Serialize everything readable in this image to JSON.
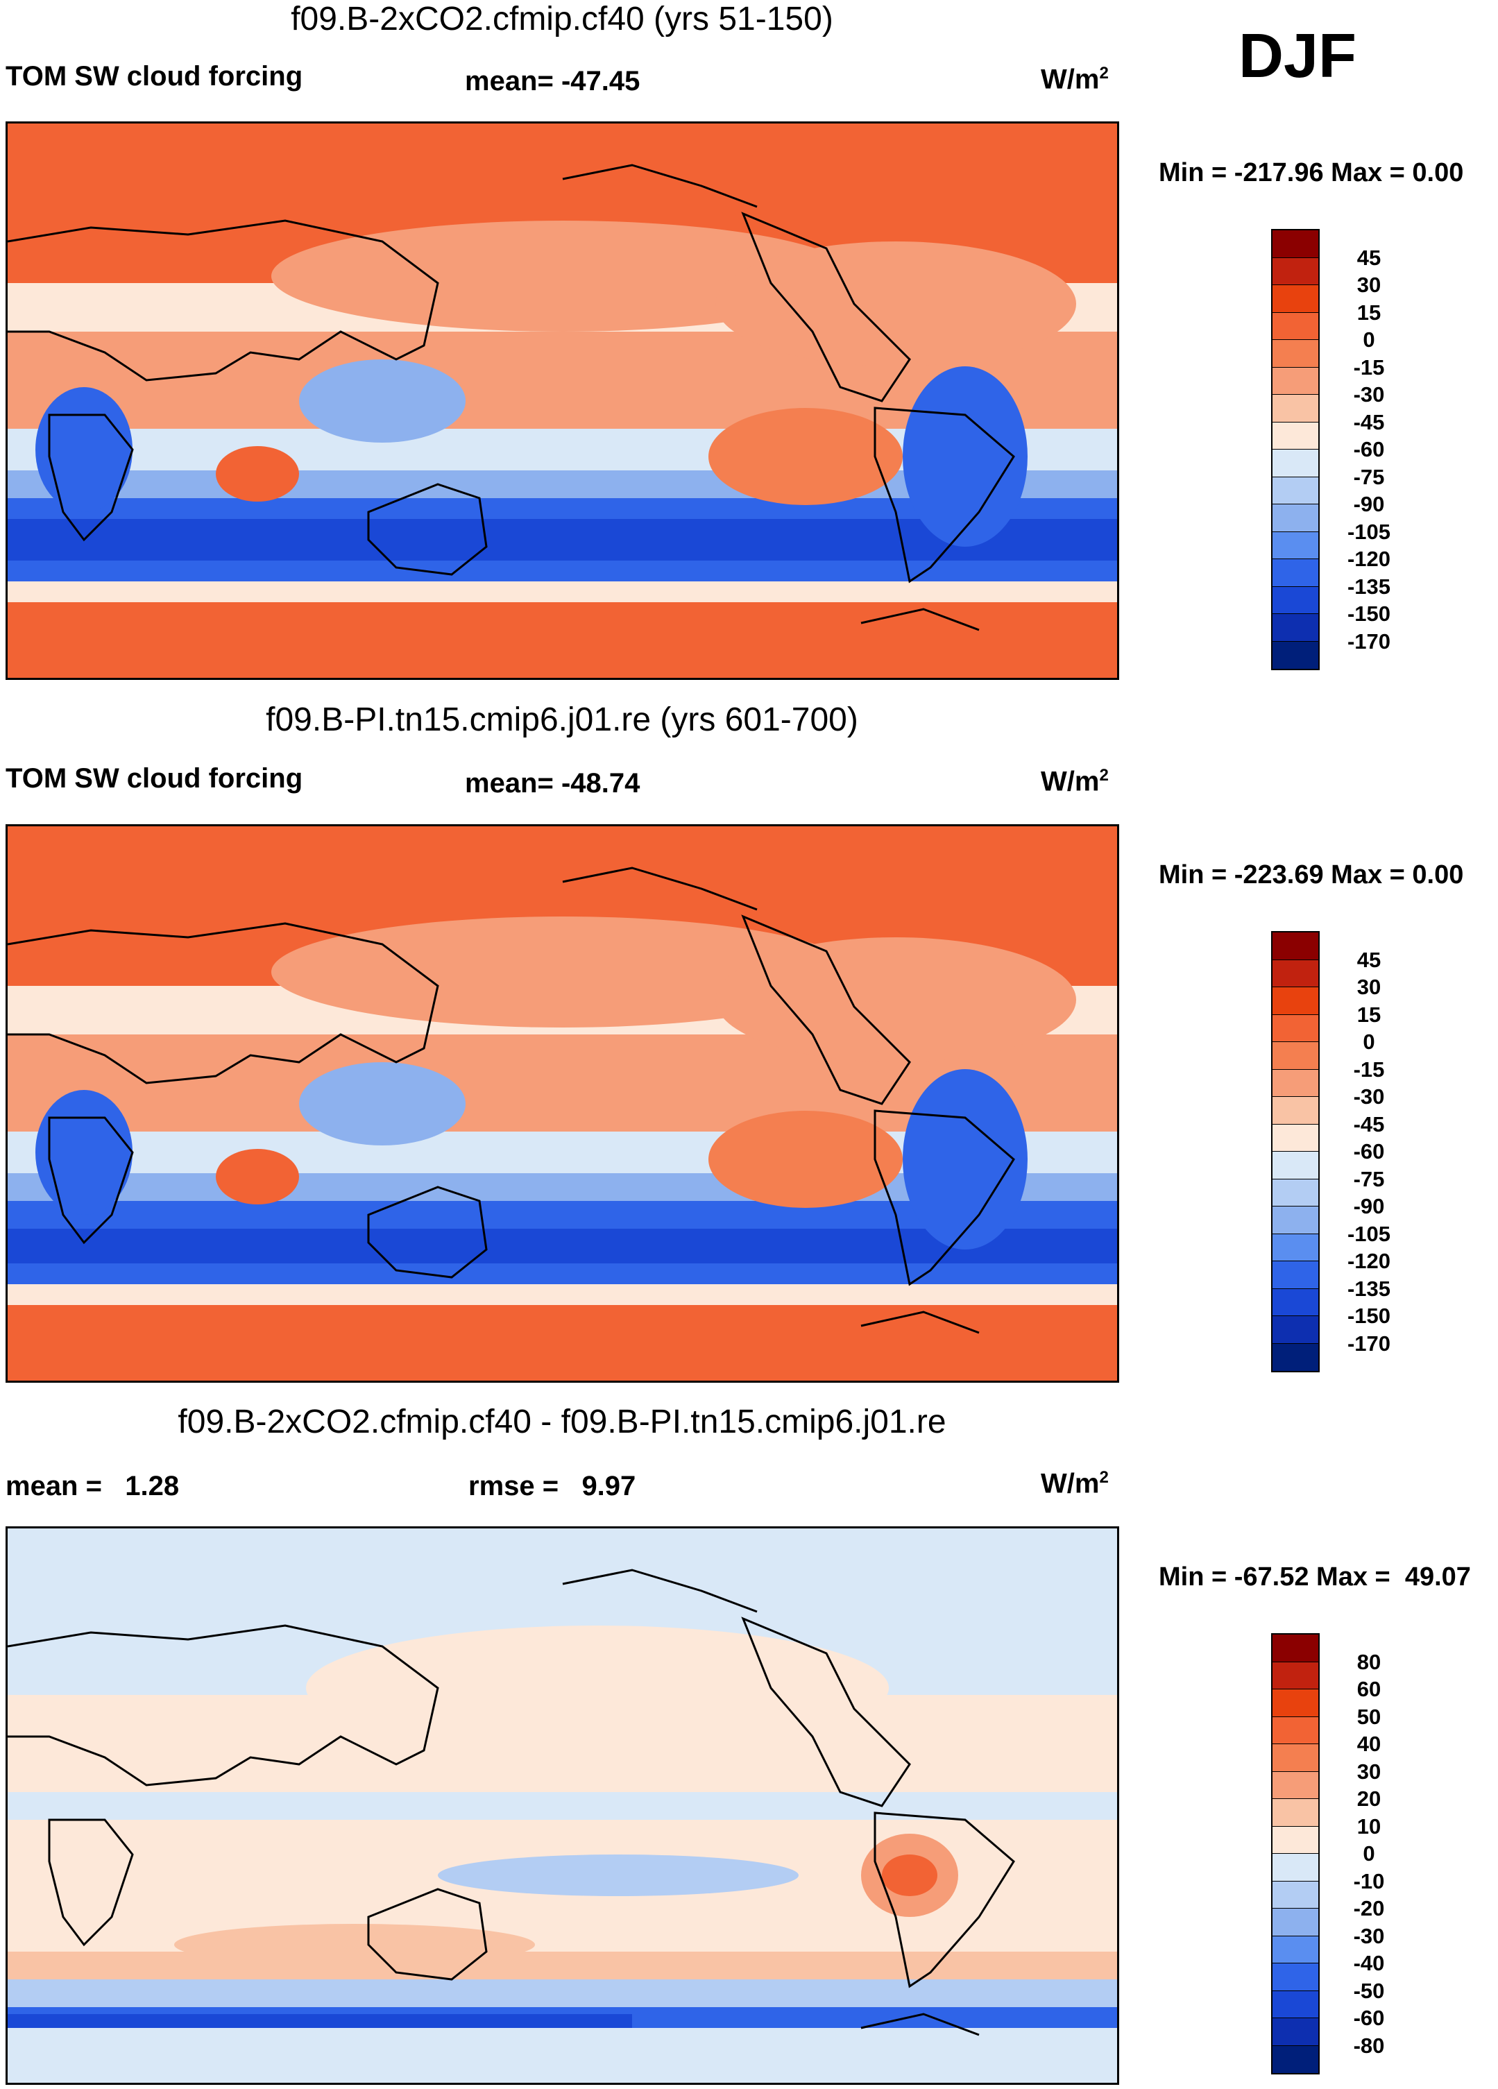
{
  "season": "DJF",
  "panels": [
    {
      "title": "f09.B-2xCO2.cfmip.cf40 (yrs 51-150)",
      "left_label": "TOM SW cloud forcing",
      "center_label": "mean= -47.45",
      "units": "W/m",
      "units_sup": "2",
      "minmax": "Min = -217.96 Max =   0.00",
      "colorbar": {
        "labels": [
          "45",
          "30",
          "15",
          "0",
          "-15",
          "-30",
          "-45",
          "-60",
          "-75",
          "-90",
          "-105",
          "-120",
          "-135",
          "-150",
          "-170"
        ],
        "colors": [
          "#8b0000",
          "#c1220f",
          "#e8420e",
          "#f26334",
          "#f47f50",
          "#f69d78",
          "#f9c3a5",
          "#fde8d9",
          "#d9e8f7",
          "#b3cdf3",
          "#8db1ee",
          "#5a8ef0",
          "#2f64e8",
          "#1a48d6",
          "#0d2fb0",
          "#001f7a"
        ]
      }
    },
    {
      "title": "f09.B-PI.tn15.cmip6.j01.re (yrs 601-700)",
      "left_label": "TOM SW cloud forcing",
      "center_label": "mean= -48.74",
      "units": "W/m",
      "units_sup": "2",
      "minmax": "Min = -223.69 Max =   0.00",
      "colorbar": {
        "labels": [
          "45",
          "30",
          "15",
          "0",
          "-15",
          "-30",
          "-45",
          "-60",
          "-75",
          "-90",
          "-105",
          "-120",
          "-135",
          "-150",
          "-170"
        ],
        "colors": [
          "#8b0000",
          "#c1220f",
          "#e8420e",
          "#f26334",
          "#f47f50",
          "#f69d78",
          "#f9c3a5",
          "#fde8d9",
          "#d9e8f7",
          "#b3cdf3",
          "#8db1ee",
          "#5a8ef0",
          "#2f64e8",
          "#1a48d6",
          "#0d2fb0",
          "#001f7a"
        ]
      }
    },
    {
      "title": "f09.B-2xCO2.cfmip.cf40 - f09.B-PI.tn15.cmip6.j01.re",
      "left_label": "mean =   1.28",
      "center_label": "rmse =   9.97",
      "units": "W/m",
      "units_sup": "2",
      "minmax": "Min = -67.52 Max =  49.07",
      "colorbar": {
        "labels": [
          "80",
          "60",
          "50",
          "40",
          "30",
          "20",
          "10",
          "0",
          "-10",
          "-20",
          "-30",
          "-40",
          "-50",
          "-60",
          "-80"
        ],
        "colors": [
          "#8b0000",
          "#c1220f",
          "#e8420e",
          "#f26334",
          "#f47f50",
          "#f69d78",
          "#f9c3a5",
          "#fde8d9",
          "#d9e8f7",
          "#b3cdf3",
          "#8db1ee",
          "#5a8ef0",
          "#2f64e8",
          "#1a48d6",
          "#0d2fb0",
          "#001f7a"
        ]
      }
    }
  ],
  "map_colors": {
    "land_high": "#f26334",
    "mid": "#f69d78",
    "light": "#fde8d9",
    "pale_blue": "#d9e8f7",
    "blue1": "#8db1ee",
    "blue2": "#2f64e8",
    "blue3": "#1a48d6",
    "diff_bg": "#fde8d9",
    "diff_blue": "#d9e8f7",
    "diff_orange": "#f9c3a5",
    "diff_red": "#f26334",
    "diff_dblue": "#1a48d6"
  }
}
